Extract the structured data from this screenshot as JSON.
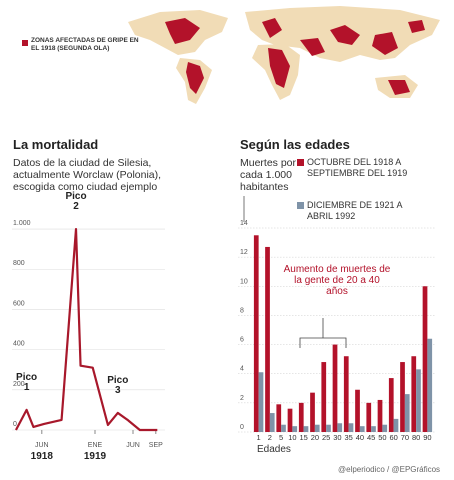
{
  "map_legend": "ZONAS AFECTADAS DE GRIPE EN EL 1918 (SEGUNDA OLA)",
  "credit": "@elperiodico / @EPGráficos",
  "chart_data": [
    {
      "type": "line",
      "title": "La mortalidad",
      "subtitle": "Datos de la ciudad de Silesia, actualmente Worclaw (Polonia), escogida como ciudad ejemplo",
      "color": "#a8182b",
      "x": [
        1.6,
        3.0,
        3.9,
        5.3,
        7.6,
        9.5,
        10.1,
        11.7,
        13.7,
        15.0,
        16.3,
        17.9,
        20.2
      ],
      "values": [
        0,
        100,
        15,
        30,
        50,
        1000,
        320,
        310,
        25,
        85,
        50,
        0,
        0
      ],
      "xlim": [
        1,
        21
      ],
      "xticks": [
        {
          "value": 5,
          "label": "JUN"
        },
        {
          "value": 12,
          "label": "ENE"
        },
        {
          "value": 17,
          "label": "JUN"
        },
        {
          "value": 20,
          "label": "SEP"
        }
      ],
      "xtick_years": [
        {
          "value": 5,
          "label": "1918"
        },
        {
          "value": 12,
          "label": "1919"
        }
      ],
      "ylim": [
        0,
        1050
      ],
      "yticks": [
        0,
        200,
        400,
        600,
        800,
        {
          "value": 1000,
          "label": "1.000"
        }
      ],
      "grid": true,
      "annotations": [
        {
          "lines": [
            "Pico",
            "1"
          ],
          "x": 3.0,
          "y": 100
        },
        {
          "lines": [
            "Pico",
            "2"
          ],
          "x": 9.5,
          "y": 1000
        },
        {
          "lines": [
            "Pico",
            "3"
          ],
          "x": 15.0,
          "y": 85
        }
      ]
    },
    {
      "type": "bar",
      "title": "Según las edades",
      "ylabel": "Muertes por cada 1.000 habitantes",
      "xlabel": "Edades",
      "categories": [
        "1",
        "2",
        "5",
        "10",
        "15",
        "20",
        "25",
        "30",
        "35",
        "40",
        "45",
        "50",
        "60",
        "70",
        "80",
        "90"
      ],
      "series": [
        {
          "name": "OCTUBRE DEL 1918 A SEPTIEMBRE DEL 1919",
          "color": "#b3122a",
          "values": [
            13.5,
            12.7,
            1.9,
            1.6,
            2.0,
            2.7,
            4.8,
            6.0,
            5.2,
            2.9,
            2.0,
            2.2,
            3.7,
            4.8,
            5.2,
            10.0
          ]
        },
        {
          "name": "DICIEMBRE DE 1921 A ABRIL 1992",
          "color": "#7f93a8",
          "values": [
            4.1,
            1.3,
            0.5,
            0.4,
            0.4,
            0.5,
            0.5,
            0.6,
            0.6,
            0.4,
            0.4,
            0.5,
            0.9,
            2.6,
            4.3,
            6.4
          ]
        }
      ],
      "ylim": [
        0,
        14
      ],
      "yticks": [
        0,
        2,
        4,
        6,
        8,
        10,
        12,
        14
      ],
      "grid": true,
      "annotation": "Aumento de muertes de la gente de 20 a 40 años"
    }
  ]
}
